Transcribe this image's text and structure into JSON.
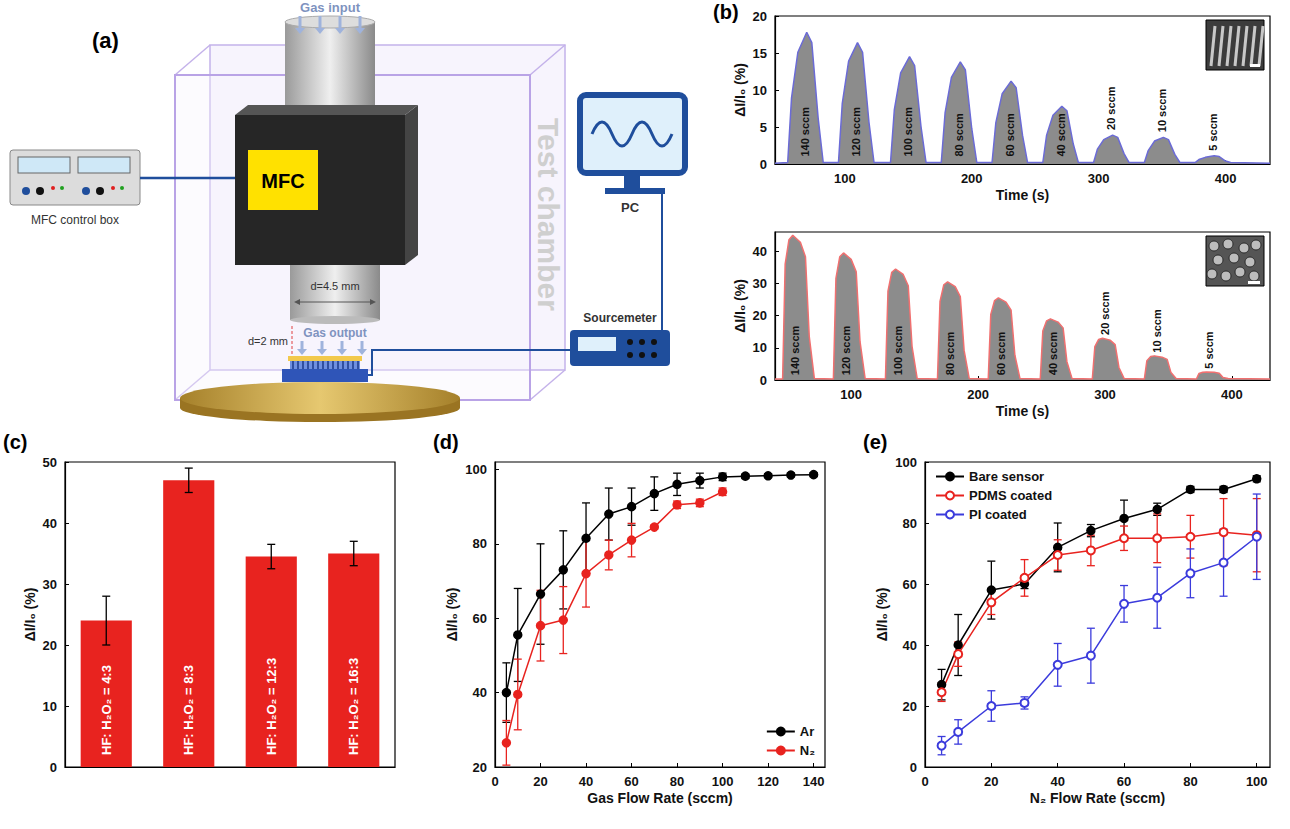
{
  "diagram": {
    "panel": "(a)",
    "gas_input": "Gas input",
    "mfc": "MFC",
    "control_box": "MFC control box",
    "chamber": "Test chamber",
    "pc": "PC",
    "sourcemeter": "Sourcemeter",
    "nozzle_diameter": "d=4.5 mm",
    "gas_output": "Gas output",
    "gap": "d=2 mm"
  },
  "chart_data": [
    {
      "panel": "(b)",
      "type": "line",
      "x_label": "Time (s)",
      "y_label": "ΔI/I₀ (%)",
      "color": "#6b6bd6",
      "x": [
        45,
        55,
        58,
        63,
        70,
        74,
        79,
        83,
        95,
        98,
        103,
        110,
        114,
        119,
        123,
        136,
        139,
        144,
        151,
        155,
        160,
        164,
        176,
        179,
        184,
        191,
        195,
        200,
        204,
        216,
        219,
        224,
        231,
        235,
        240,
        244,
        256,
        259,
        264,
        271,
        275,
        280,
        284,
        296,
        299,
        304,
        311,
        315,
        320,
        324,
        336,
        339,
        344,
        351,
        355,
        360,
        364,
        376,
        379,
        384,
        391,
        395,
        400,
        404,
        435
      ],
      "values": [
        0.1,
        0.2,
        8.9,
        15.1,
        17.8,
        16.4,
        6.2,
        0.2,
        0.2,
        8.2,
        13.9,
        16.4,
        15.1,
        5.7,
        0.2,
        0.2,
        7.3,
        12.3,
        14.5,
        13.3,
        5.1,
        0.2,
        0.2,
        6.9,
        11.7,
        13.8,
        12.7,
        4.8,
        0.2,
        0.2,
        5.6,
        9.5,
        11.2,
        10.3,
        3.9,
        0.2,
        0.2,
        3.9,
        6.6,
        7.8,
        7.2,
        2.7,
        0.2,
        0.2,
        2.0,
        3.3,
        3.9,
        3.6,
        1.4,
        0.2,
        0.2,
        1.8,
        3.1,
        3.6,
        3.3,
        1.3,
        0.2,
        0.2,
        0.6,
        0.9,
        1.1,
        1.0,
        0.4,
        0.2,
        0.1
      ],
      "xlim": [
        45,
        435
      ],
      "xticks": [
        100,
        200,
        300,
        400
      ],
      "ylim": [
        0,
        20
      ],
      "yticks": [
        0,
        5,
        10,
        15,
        20
      ],
      "grid": false,
      "annotations": [
        {
          "x": 69,
          "y": 1,
          "text": "140 sccm"
        },
        {
          "x": 109,
          "y": 1,
          "text": "120 sccm"
        },
        {
          "x": 150,
          "y": 1,
          "text": "100 sccm"
        },
        {
          "x": 190,
          "y": 1,
          "text": "80 sccm"
        },
        {
          "x": 230,
          "y": 1,
          "text": "60 sccm"
        },
        {
          "x": 270,
          "y": 1,
          "text": "40 sccm"
        },
        {
          "x": 310,
          "y": 4.6,
          "text": "20 sccm"
        },
        {
          "x": 350,
          "y": 4.3,
          "text": "10 sccm"
        },
        {
          "x": 390,
          "y": 1.8,
          "text": "5 sccm"
        }
      ]
    },
    {
      "type": "line",
      "x_label": "Time (s)",
      "y_label": "ΔI/I₀ (%)",
      "color": "#f07070",
      "x": [
        40,
        46,
        48,
        51,
        54,
        60,
        64,
        67,
        71,
        86,
        88,
        91,
        94,
        100,
        104,
        107,
        111,
        127,
        129,
        132,
        135,
        141,
        145,
        148,
        152,
        168,
        170,
        173,
        176,
        182,
        186,
        189,
        193,
        208,
        210,
        213,
        216,
        222,
        226,
        229,
        233,
        249,
        251,
        254,
        257,
        263,
        267,
        270,
        274,
        290,
        292,
        295,
        298,
        304,
        308,
        311,
        315,
        331,
        333,
        336,
        339,
        345,
        349,
        352,
        356,
        372,
        374,
        377,
        380,
        386,
        390,
        393,
        397,
        430
      ],
      "values": [
        0.3,
        0.3,
        36,
        43.6,
        45,
        42.8,
        38.3,
        13.5,
        0.5,
        0.3,
        31.6,
        38.3,
        39.5,
        37.5,
        33.6,
        11.9,
        0.5,
        0.3,
        27.6,
        33.5,
        34.5,
        32.8,
        29.3,
        10.4,
        0.5,
        0.3,
        24.4,
        29.6,
        30.5,
        29,
        25.9,
        9.2,
        0.5,
        0.3,
        20.4,
        24.7,
        25.5,
        24.2,
        21.7,
        7.7,
        0.5,
        0.3,
        15.2,
        18.4,
        19,
        18,
        16.2,
        5.7,
        0.5,
        0.3,
        10.4,
        12.6,
        13,
        12.4,
        11,
        3.9,
        0.5,
        0.3,
        6,
        7.3,
        7.5,
        7.1,
        6.4,
        2.3,
        0.5,
        0.3,
        2,
        2.4,
        2.5,
        2.4,
        2.1,
        0.8,
        0.5,
        0.3
      ],
      "xlim": [
        40,
        430
      ],
      "xticks": [
        100,
        200,
        300,
        400
      ],
      "ylim": [
        0,
        46
      ],
      "yticks": [
        0,
        10,
        20,
        30,
        40
      ],
      "grid": false,
      "annotations": [
        {
          "x": 56,
          "y": 1.5,
          "text": "140 sccm"
        },
        {
          "x": 96,
          "y": 1.5,
          "text": "120 sccm"
        },
        {
          "x": 137,
          "y": 1.5,
          "text": "100 sccm"
        },
        {
          "x": 178,
          "y": 1.5,
          "text": "80 sccm"
        },
        {
          "x": 218,
          "y": 1.5,
          "text": "60 sccm"
        },
        {
          "x": 259,
          "y": 1.5,
          "text": "40 sccm"
        },
        {
          "x": 300,
          "y": 14,
          "text": "20 sccm"
        },
        {
          "x": 341,
          "y": 8.5,
          "text": "10 sccm"
        },
        {
          "x": 382,
          "y": 3.5,
          "text": "5 sccm"
        }
      ]
    },
    {
      "panel": "(c)",
      "type": "bar",
      "y_label": "ΔI/I₀ (%)",
      "categories": [
        "HF: H₂O₂ = 4:3",
        "HF: H₂O₂ = 8:3",
        "HF: H₂O₂ = 12:3",
        "HF: H₂O₂ = 16:3"
      ],
      "values": [
        24,
        47,
        34.5,
        35
      ],
      "errors": [
        4,
        2,
        2,
        2
      ],
      "color": "#e8231f",
      "ylim": [
        0,
        50
      ],
      "yticks": [
        0,
        10,
        20,
        30,
        40,
        50
      ],
      "grid": false,
      "tick_labels": "y"
    },
    {
      "panel": "(d)",
      "type": "line",
      "x_label": "Gas Flow Rate (sccm)",
      "y_label": "ΔI/I₀ (%)",
      "series": [
        {
          "name": "Ar",
          "color": "#000000",
          "marker": "circle",
          "x": [
            5,
            10,
            20,
            30,
            40,
            50,
            60,
            70,
            80,
            90,
            100,
            110,
            120,
            130,
            140
          ],
          "values": [
            40,
            55.5,
            66.5,
            73,
            81.5,
            88,
            90,
            93.5,
            96,
            97,
            98,
            98.2,
            98.3,
            98.5,
            98.6
          ],
          "errors": [
            8,
            12.5,
            13.5,
            10.5,
            9.5,
            7,
            5,
            4.5,
            3,
            2,
            1,
            0.5,
            0.5,
            0.5,
            0.5
          ]
        },
        {
          "name": "N₂",
          "color": "#e8231f",
          "marker": "circle",
          "x": [
            5,
            10,
            20,
            30,
            40,
            50,
            60,
            70,
            80,
            90,
            100
          ],
          "values": [
            26.5,
            39.5,
            58,
            59.5,
            72,
            77,
            81,
            84.5,
            90.5,
            91,
            94
          ],
          "errors": [
            6,
            9.5,
            9.5,
            9,
            9,
            4,
            4.5,
            0.5,
            1,
            1,
            1
          ]
        }
      ],
      "xlim": [
        0,
        145
      ],
      "xticks": [
        0,
        20,
        40,
        60,
        80,
        100,
        120,
        140
      ],
      "ylim": [
        20,
        102
      ],
      "yticks": [
        20,
        40,
        60,
        80,
        100
      ],
      "grid": false,
      "legend": "bottom-right"
    },
    {
      "panel": "(e)",
      "type": "line",
      "x_label": "N₂ Flow Rate (sccm)",
      "y_label": "ΔI/I₀ (%)",
      "series": [
        {
          "name": "Bare sensor",
          "color": "#000000",
          "marker": "circle",
          "x": [
            5,
            10,
            20,
            30,
            40,
            50,
            60,
            70,
            80,
            90,
            100
          ],
          "values": [
            27,
            40,
            58,
            60,
            72,
            77.5,
            81.5,
            84.5,
            91,
            91,
            94.5
          ],
          "errors": [
            5,
            10,
            9.5,
            1.5,
            8,
            2,
            6,
            2,
            1,
            1,
            1
          ]
        },
        {
          "name": "PDMS coated",
          "color": "#e8231f",
          "marker": "open_circle",
          "x": [
            5,
            10,
            20,
            30,
            40,
            50,
            60,
            70,
            80,
            90,
            100
          ],
          "values": [
            24.5,
            37,
            54,
            62,
            69.5,
            71,
            75,
            75,
            75.5,
            77,
            76
          ],
          "errors": [
            3,
            4,
            4,
            6,
            5,
            5,
            4,
            8,
            7,
            11,
            12
          ]
        },
        {
          "name": "PI coated",
          "color": "#3b3bdc",
          "marker": "open_circle",
          "x": [
            5,
            10,
            20,
            30,
            40,
            50,
            60,
            70,
            80,
            90,
            100
          ],
          "values": [
            7,
            11.5,
            20,
            21,
            33.5,
            36.5,
            53.5,
            55.5,
            63.5,
            67,
            75.5
          ],
          "errors": [
            3,
            4,
            5,
            2,
            7,
            9,
            6,
            10,
            8,
            11,
            14
          ]
        }
      ],
      "xlim": [
        0,
        104
      ],
      "xticks": [
        0,
        20,
        40,
        60,
        80,
        100
      ],
      "ylim": [
        0,
        100
      ],
      "yticks": [
        0,
        20,
        40,
        60,
        80,
        100
      ],
      "grid": false,
      "legend": "top-left"
    }
  ]
}
